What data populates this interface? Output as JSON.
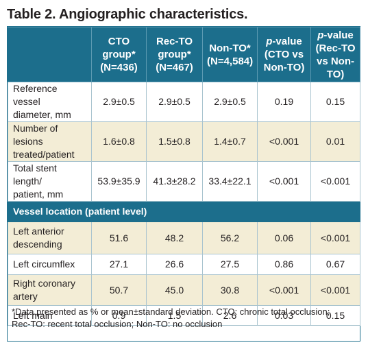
{
  "title": "Table 2. Angiographic characteristics.",
  "headers": {
    "cto": [
      "CTO",
      "group*",
      "(N=436)"
    ],
    "recto": [
      "Rec-TO",
      "group*",
      "(N=467)"
    ],
    "nonto": [
      "Non-TO*",
      "(N=4,584)"
    ],
    "p1": {
      "p": "p",
      "rest": "-value",
      "l2": "(CTO vs",
      "l3": "Non-TO)"
    },
    "p2": {
      "p": "p",
      "rest": "-value",
      "l2": "(Rec-TO",
      "l3": "vs Non-TO)"
    }
  },
  "rows": [
    {
      "label": [
        "Reference vessel",
        "diameter, mm"
      ],
      "values": [
        "2.9±0.5",
        "2.9±0.5",
        "2.9±0.5",
        "0.19",
        "0.15"
      ]
    },
    {
      "label": [
        "Number of lesions",
        "treated/patient"
      ],
      "values": [
        "1.6±0.8",
        "1.5±0.8",
        "1.4±0.7",
        "<0.001",
        "0.01"
      ]
    },
    {
      "label": [
        "Total stent length/",
        "patient, mm"
      ],
      "values": [
        "53.9±35.9",
        "41.3±28.2",
        "33.4±22.1",
        "<0.001",
        "<0.001"
      ]
    }
  ],
  "section": "Vessel location (patient level)",
  "location_rows": [
    {
      "label": [
        "Left anterior",
        "descending"
      ],
      "values": [
        "51.6",
        "48.2",
        "56.2",
        "0.06",
        "<0.001"
      ]
    },
    {
      "label": [
        "Left circumflex"
      ],
      "values": [
        "27.1",
        "26.6",
        "27.5",
        "0.86",
        "0.67"
      ]
    },
    {
      "label": [
        "Right coronary",
        "artery"
      ],
      "values": [
        "50.7",
        "45.0",
        "30.8",
        "<0.001",
        "<0.001"
      ]
    },
    {
      "label": [
        "Left main"
      ],
      "values": [
        "0.9",
        "1.5",
        "2.6",
        "0.03",
        "0.15"
      ]
    }
  ],
  "footnote": [
    "*Data presented as % or mean±standard deviation. CTO: chronic total occlusion;",
    "Rec-TO: recent total occlusion; Non-TO: no occlusion"
  ],
  "colors": {
    "header_bg": "#1c6e8c",
    "shade_bg": "#f3edd6",
    "grid": "#a9c4cf"
  }
}
